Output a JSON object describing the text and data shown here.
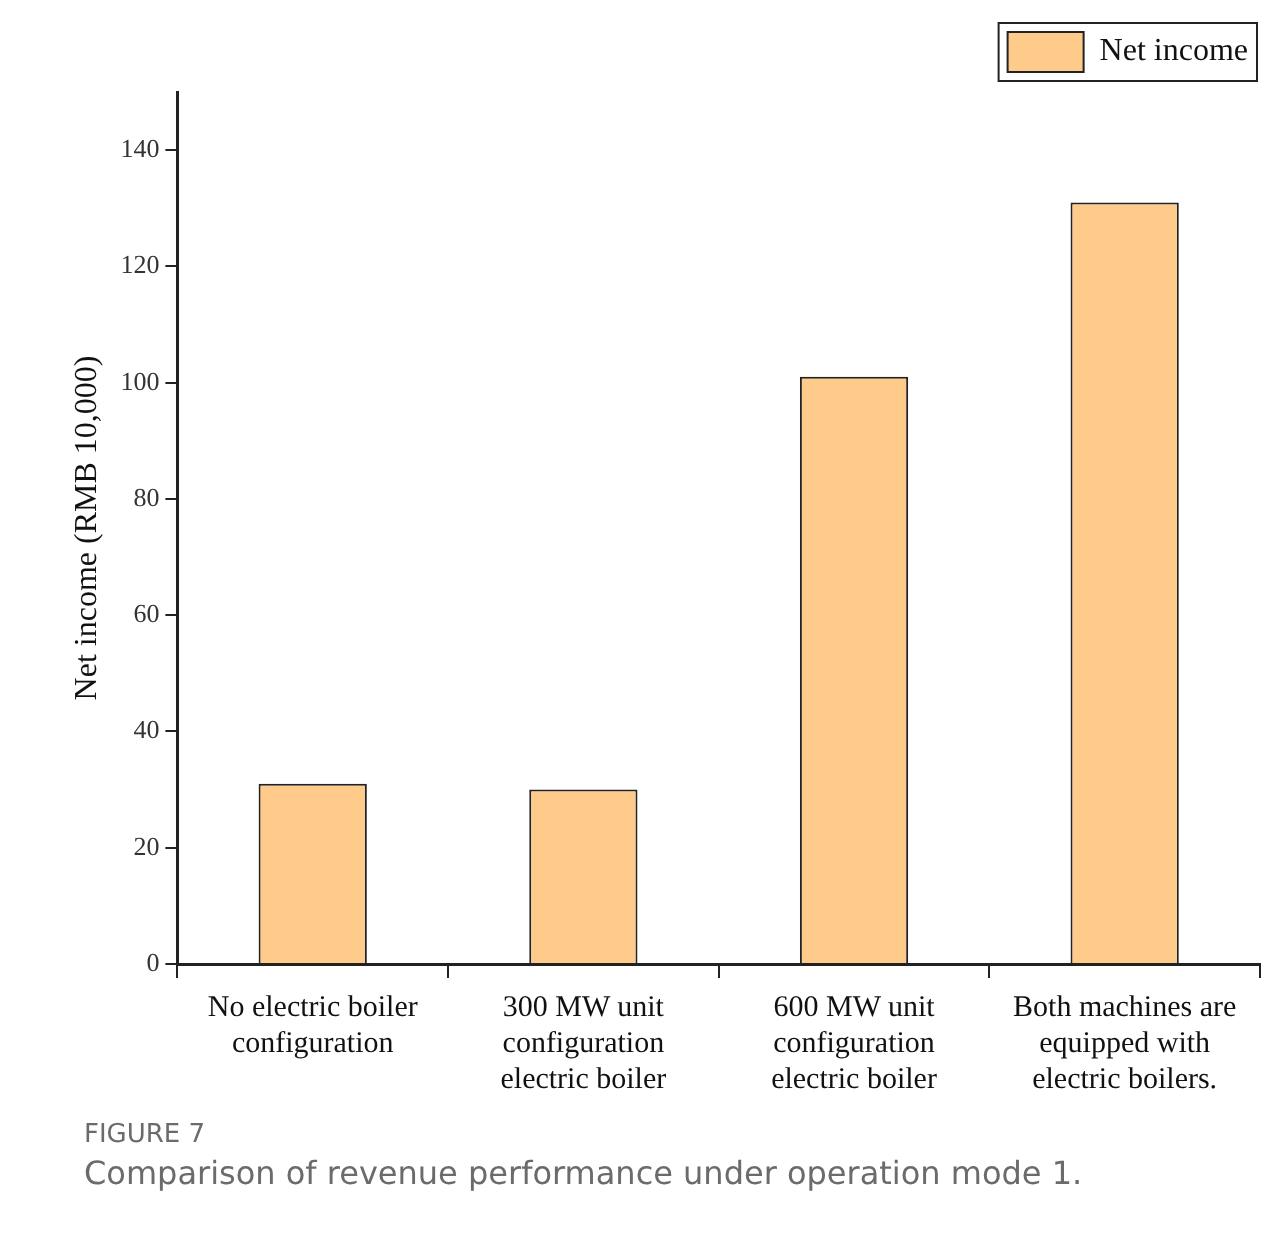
{
  "chart_data": {
    "type": "bar",
    "categories": [
      "No electric boiler configuration",
      "300 MW unit configuration electric boiler",
      "600 MW unit configuration electric boiler",
      "Both machines are equipped with electric boilers."
    ],
    "series": [
      {
        "name": "Net income",
        "color": "#fecb8b",
        "values": [
          31,
          30,
          101,
          131
        ]
      }
    ],
    "ylabel": "Net income (RMB 10,000)",
    "ylim": [
      0,
      150
    ],
    "yticks": [
      0,
      20,
      40,
      60,
      80,
      100,
      120,
      140
    ],
    "grid": false,
    "legend": "top right",
    "annotations": [
      "FIGURE 7",
      "Comparison of revenue performance under operation mode 1."
    ]
  }
}
